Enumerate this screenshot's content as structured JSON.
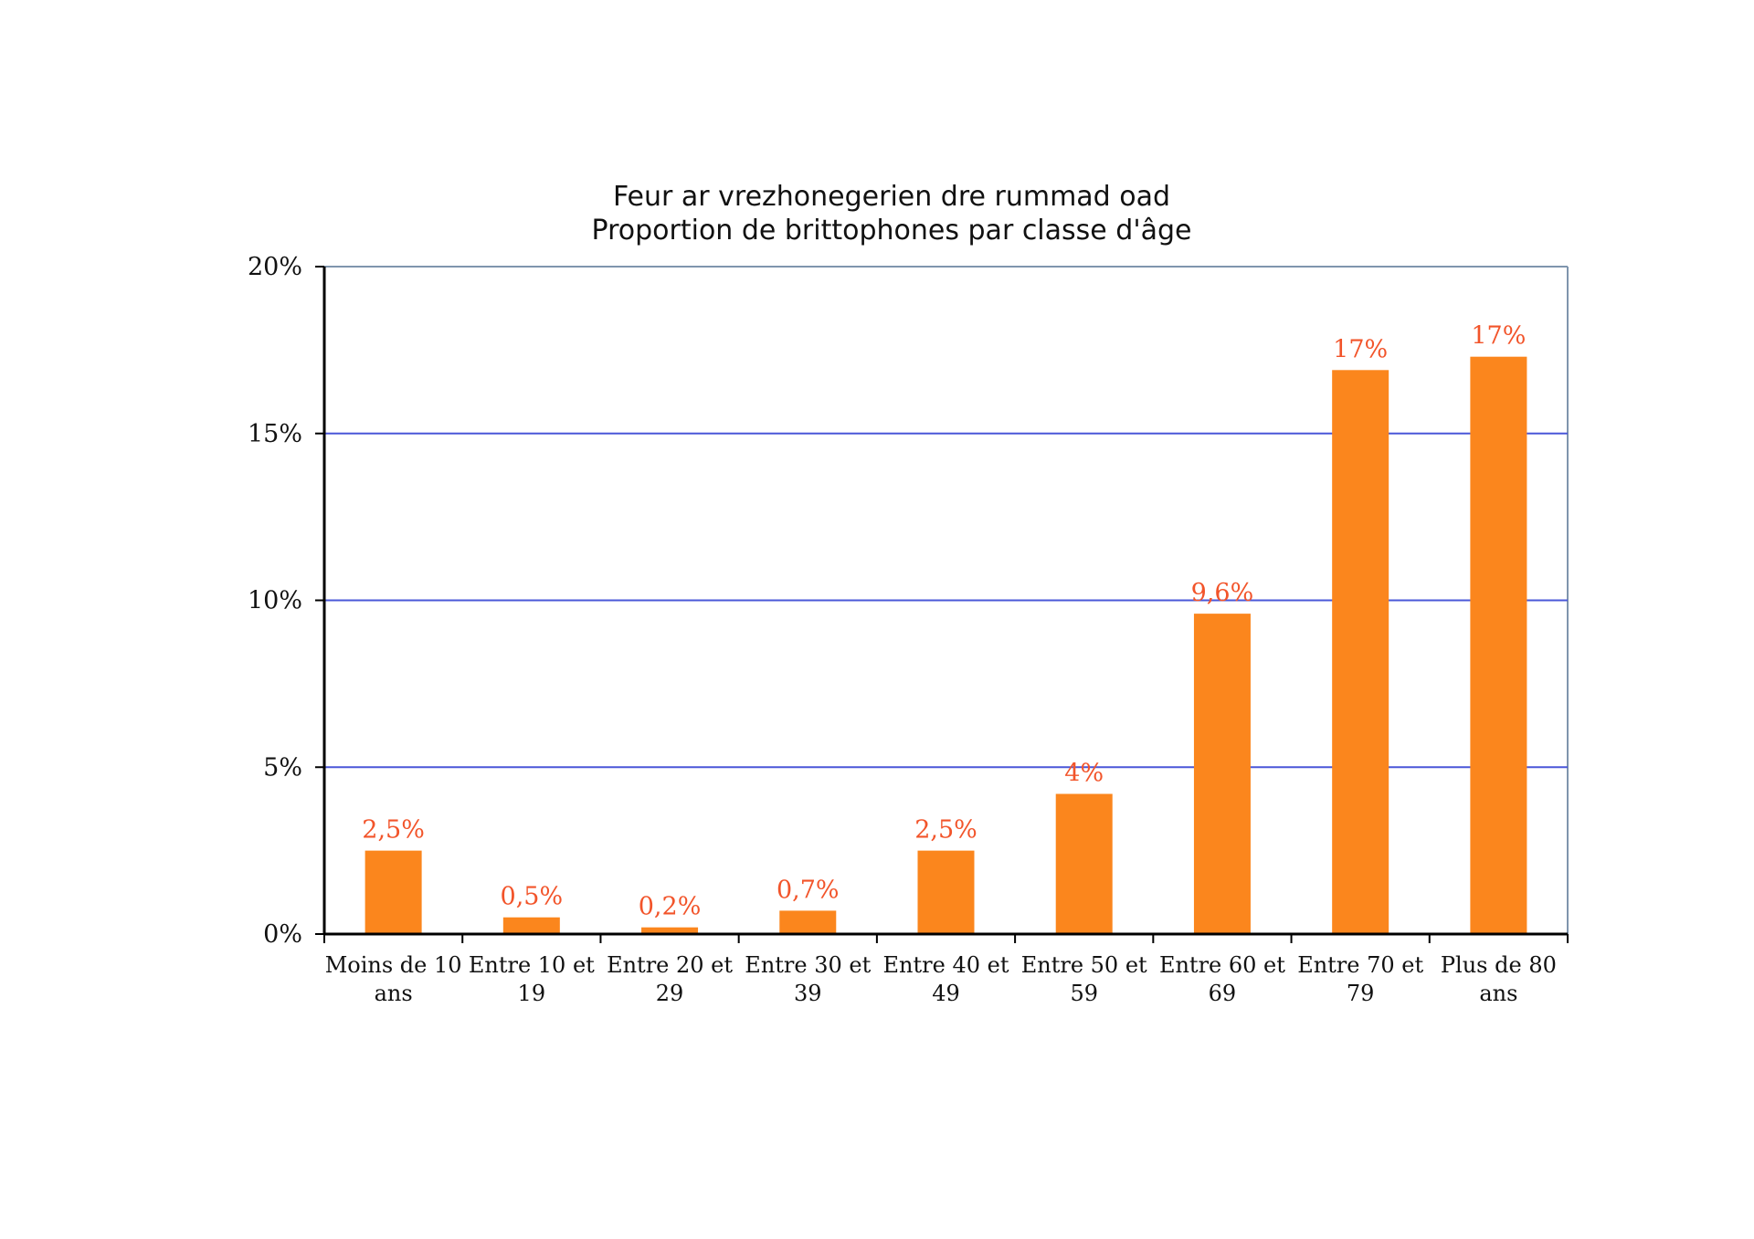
{
  "chart_data": {
    "type": "bar",
    "title": [
      "Feur ar vrezhonegerien dre rummad oad",
      "Proportion de brittophones par classe d'âge"
    ],
    "categories": [
      [
        "Moins de 10",
        "ans"
      ],
      [
        "Entre 10 et",
        "19"
      ],
      [
        "Entre 20 et",
        "29"
      ],
      [
        "Entre 30 et",
        "39"
      ],
      [
        "Entre 40 et",
        "49"
      ],
      [
        "Entre 50 et",
        "59"
      ],
      [
        "Entre 60 et",
        "69"
      ],
      [
        "Entre 70 et",
        "79"
      ],
      [
        "Plus de 80",
        "ans"
      ]
    ],
    "values": [
      2.5,
      0.5,
      0.2,
      0.7,
      2.5,
      4.2,
      9.6,
      16.9,
      17.3
    ],
    "data_labels": [
      "2,5%",
      "0,5%",
      "0,2%",
      "0,7%",
      "2,5%",
      "4%",
      "9,6%",
      "17%",
      "17%"
    ],
    "yticks": [
      {
        "value": 0,
        "label": "0%"
      },
      {
        "value": 5,
        "label": "5%"
      },
      {
        "value": 10,
        "label": "10%"
      },
      {
        "value": 15,
        "label": "15%"
      },
      {
        "value": 20,
        "label": "20%"
      }
    ],
    "ylim": [
      0,
      20
    ],
    "xlabel": "",
    "ylabel": "",
    "grid": true,
    "legend": "none",
    "colors": {
      "bar": "#fb861d",
      "data_label": "#f2542a",
      "grid": "#4a57d8",
      "axis": "#000000",
      "frame": "#7f95ad"
    }
  }
}
